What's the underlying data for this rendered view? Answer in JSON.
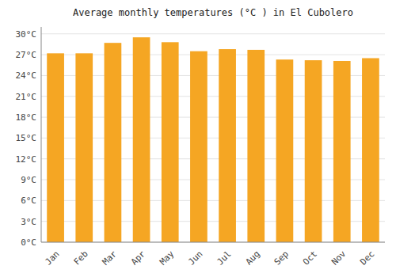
{
  "chart_data": {
    "type": "bar",
    "title": "Average monthly temperatures (°C ) in El Cubolero",
    "categories": [
      "Jan",
      "Feb",
      "Mar",
      "Apr",
      "May",
      "Jun",
      "Jul",
      "Aug",
      "Sep",
      "Oct",
      "Nov",
      "Dec"
    ],
    "values": [
      27.2,
      27.2,
      28.7,
      29.5,
      28.8,
      27.5,
      27.8,
      27.7,
      26.3,
      26.2,
      26.1,
      26.5
    ],
    "color": "#F5A623",
    "ylim": [
      0,
      31
    ],
    "yticks": [
      {
        "value": 0,
        "label": "0°C"
      },
      {
        "value": 3,
        "label": "3°C"
      },
      {
        "value": 6,
        "label": "6°C"
      },
      {
        "value": 9,
        "label": "9°C"
      },
      {
        "value": 12,
        "label": "12°C"
      },
      {
        "value": 15,
        "label": "15°C"
      },
      {
        "value": 18,
        "label": "18°C"
      },
      {
        "value": 21,
        "label": "21°C"
      },
      {
        "value": 24,
        "label": "24°C"
      },
      {
        "value": 27,
        "label": "27°C"
      },
      {
        "value": 30,
        "label": "30°C"
      }
    ],
    "grid": true
  }
}
